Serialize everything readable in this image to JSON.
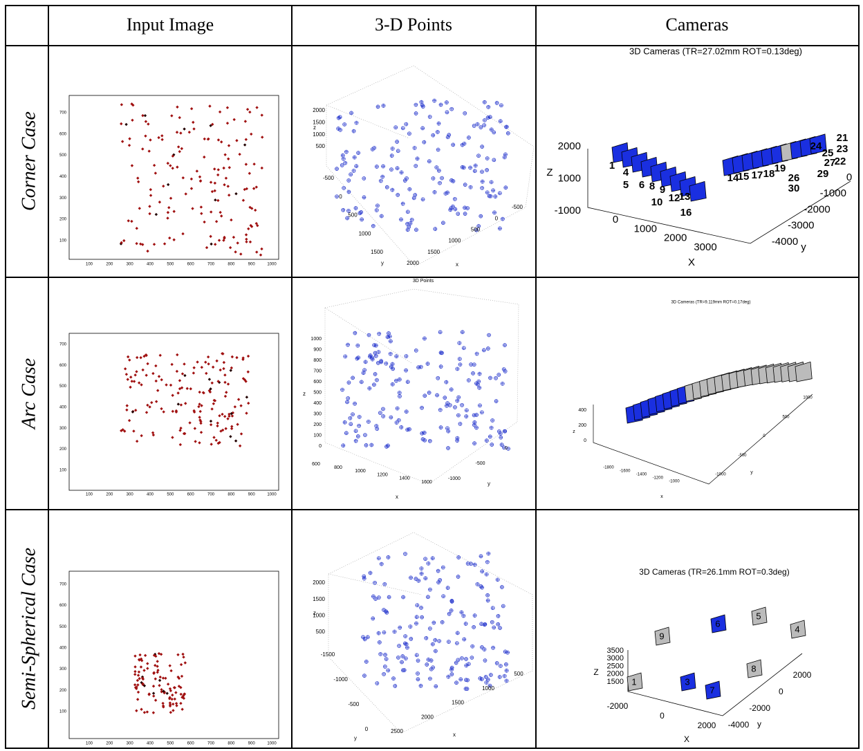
{
  "table": {
    "header": [
      "Input Image",
      "3-D Points",
      "Cameras"
    ],
    "rows": [
      {
        "label": "Corner Case",
        "image": {
          "xticks": [
            100,
            200,
            300,
            400,
            500,
            600,
            700,
            800,
            900,
            1000
          ],
          "yticks": [
            100,
            200,
            300,
            400,
            500,
            600,
            700
          ]
        },
        "points": {
          "zticks": [
            2000,
            1500,
            1000,
            500
          ],
          "yticks": [
            -500,
            0,
            500,
            1000,
            1500
          ],
          "xticks": [
            2000,
            1500,
            1000,
            500,
            0,
            -500
          ],
          "xlabel": "x",
          "ylabel": "y",
          "zlabel": "z"
        },
        "cameras": {
          "title": "3D Cameras (TR=27.02mm ROT=0.13deg)",
          "zticks": [
            2000,
            1000,
            -1000
          ],
          "xticks": [
            0,
            1000,
            2000,
            3000
          ],
          "yticks": [
            0,
            -1000,
            -2000,
            -3000,
            -4000
          ],
          "xlabel": "X",
          "ylabel": "y",
          "zlabel": "Z",
          "camera_labels": [
            "1",
            "4",
            "5",
            "6",
            "8",
            "9",
            "10",
            "12",
            "13",
            "16",
            "14",
            "15",
            "17",
            "18",
            "19",
            "26",
            "30",
            "29",
            "27",
            "25",
            "22",
            "23",
            "21",
            "24"
          ]
        }
      },
      {
        "label": "Arc Case",
        "image": {
          "xticks": [
            100,
            200,
            300,
            400,
            500,
            600,
            700,
            800,
            900,
            1000
          ],
          "yticks": [
            100,
            200,
            300,
            400,
            500,
            600,
            700
          ]
        },
        "points": {
          "title": "3D Points",
          "zticks": [
            1000,
            900,
            800,
            700,
            600,
            500,
            400,
            300,
            200,
            100,
            0
          ],
          "xticks": [
            600,
            800,
            1000,
            1200,
            1400,
            1600
          ],
          "yticks": [
            -1000,
            -500,
            0
          ],
          "xlabel": "x",
          "ylabel": "y",
          "zlabel": "z"
        },
        "cameras": {
          "title": "3D Cameras (TR=9.119mm ROT=0.17deg)",
          "zticks": [
            400,
            200,
            0
          ],
          "xticks": [
            -1800,
            -1600,
            -1400,
            -1200,
            -1000
          ],
          "yticks": [
            1000,
            500,
            0,
            -500,
            -1000
          ],
          "xlabel": "x",
          "ylabel": "y",
          "zlabel": "z"
        }
      },
      {
        "label": "Semi-Spherical Case",
        "image": {
          "xticks": [
            100,
            200,
            300,
            400,
            500,
            600,
            700,
            800,
            900,
            1000
          ],
          "yticks": [
            100,
            200,
            300,
            400,
            500,
            600,
            700
          ]
        },
        "points": {
          "zticks": [
            2000,
            1500,
            1000,
            500
          ],
          "yticks": [
            -1500,
            -1000,
            -500,
            0
          ],
          "xticks": [
            2500,
            2000,
            1500,
            1000,
            500
          ],
          "xlabel": "x",
          "ylabel": "y",
          "zlabel": "z"
        },
        "cameras": {
          "title": "3D Cameras (TR=26.1mm ROT=0.3deg)",
          "zticks": [
            3500,
            3000,
            2500,
            2000,
            1500
          ],
          "xticks": [
            -2000,
            0,
            2000
          ],
          "yticks": [
            2000,
            0,
            -2000,
            -4000
          ],
          "xlabel": "X",
          "ylabel": "y",
          "zlabel": "Z",
          "camera_labels": [
            "9",
            "6",
            "5",
            "4",
            "1",
            "3",
            "7",
            "8"
          ]
        }
      }
    ]
  }
}
